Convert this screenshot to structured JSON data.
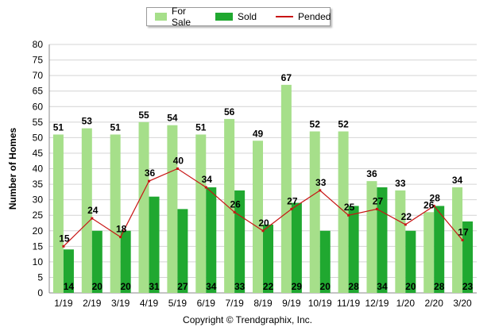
{
  "copyright": "Copyright © Trendgraphix, Inc.",
  "legend": {
    "for_sale": "For Sale",
    "sold": "Sold",
    "pended": "Pended"
  },
  "colors": {
    "for_sale": "#a6df8a",
    "sold": "#20a830",
    "pended": "#c81414",
    "grid": "#d4d4d4"
  },
  "chart_data": {
    "type": "bar",
    "ylabel": "Number of Homes",
    "xlabel": "",
    "ylim": [
      0,
      80
    ],
    "yticks": [
      0,
      5,
      10,
      15,
      20,
      25,
      30,
      35,
      40,
      45,
      50,
      55,
      60,
      65,
      70,
      75,
      80
    ],
    "grid": true,
    "legend_position": "top-center",
    "categories": [
      "1/19",
      "2/19",
      "3/19",
      "4/19",
      "5/19",
      "6/19",
      "7/19",
      "8/19",
      "9/19",
      "10/19",
      "11/19",
      "12/19",
      "1/20",
      "2/20",
      "3/20"
    ],
    "series": [
      {
        "name": "For Sale",
        "kind": "bar",
        "values": [
          51,
          53,
          51,
          55,
          54,
          51,
          56,
          49,
          67,
          52,
          52,
          36,
          33,
          26,
          34
        ]
      },
      {
        "name": "Sold",
        "kind": "bar",
        "values": [
          14,
          20,
          20,
          31,
          27,
          34,
          33,
          22,
          29,
          20,
          28,
          34,
          20,
          28,
          23
        ]
      },
      {
        "name": "Pended",
        "kind": "line",
        "values": [
          15,
          24,
          18,
          36,
          40,
          34,
          26,
          20,
          27,
          33,
          25,
          27,
          22,
          28,
          17
        ]
      }
    ]
  }
}
